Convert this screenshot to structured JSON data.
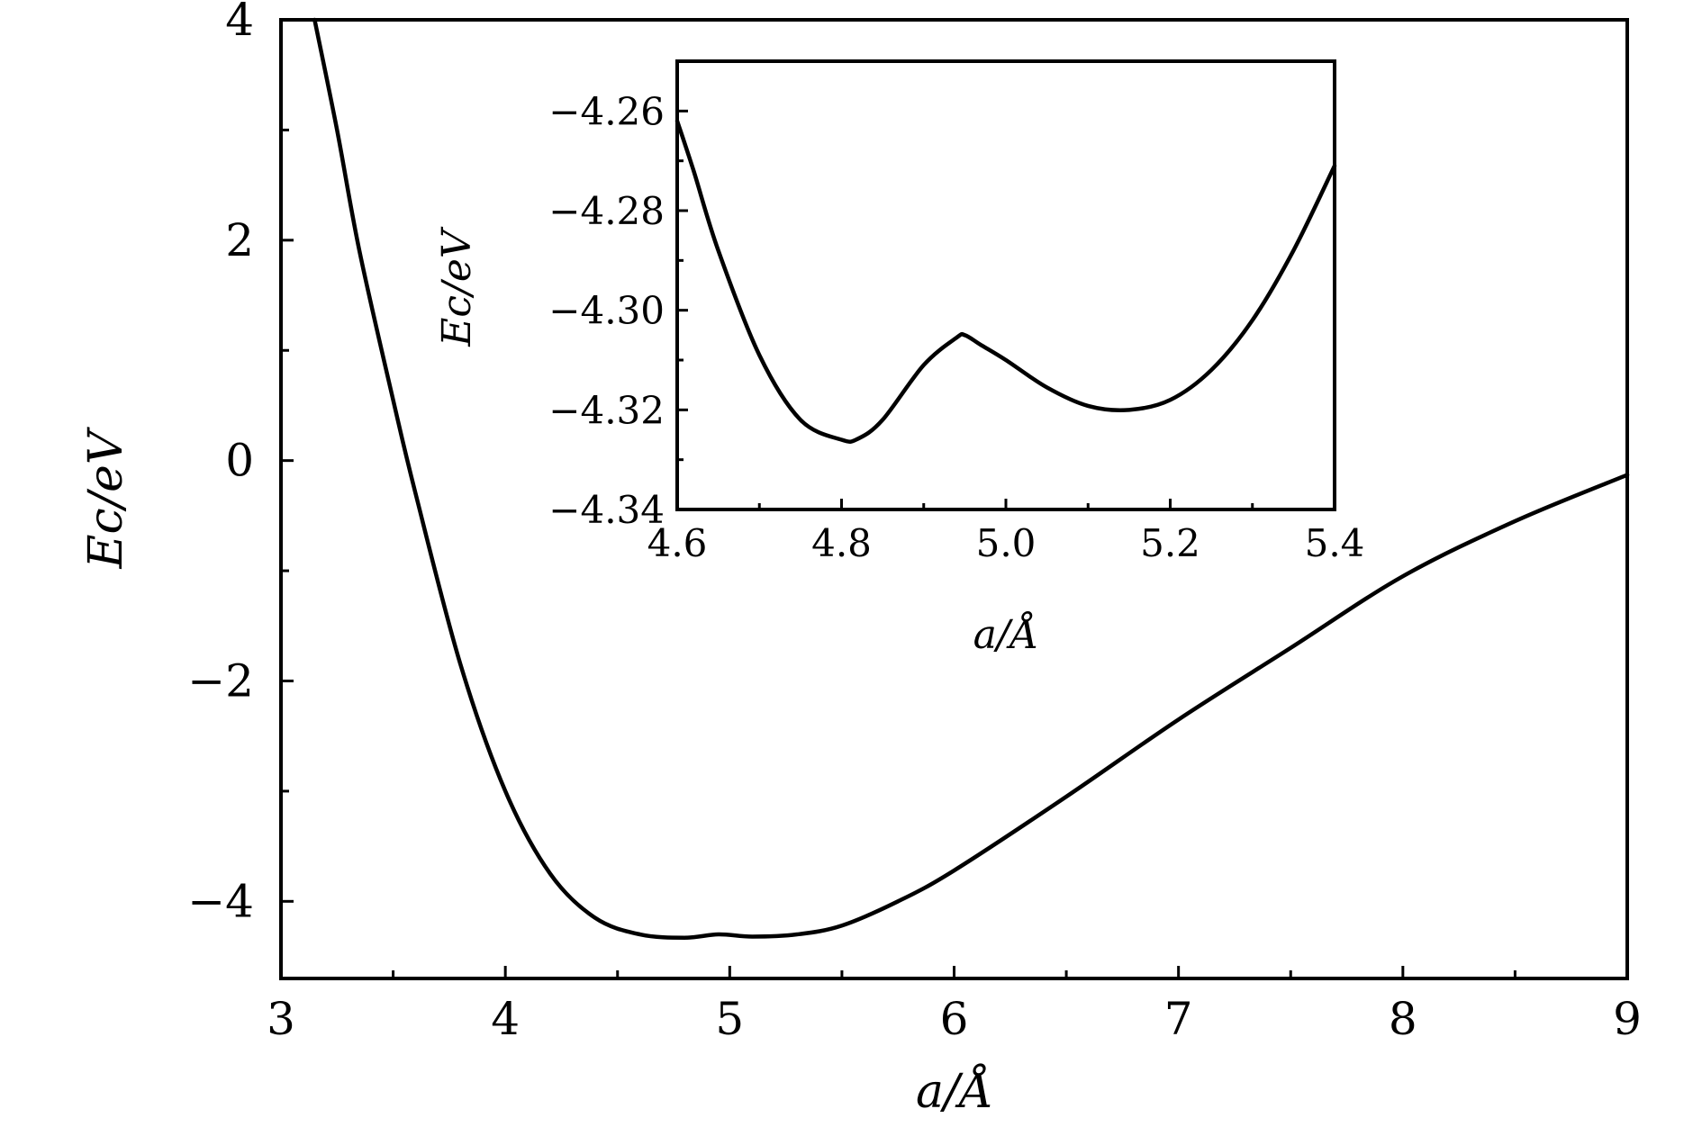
{
  "chart_data": [
    {
      "id": "main",
      "type": "line",
      "title": "",
      "xlabel": "a/Å",
      "ylabel": "Ec/eV",
      "xlim": [
        3,
        9
      ],
      "ylim": [
        -4.7,
        4
      ],
      "x_ticks": [
        3,
        4,
        5,
        6,
        7,
        8,
        9
      ],
      "x_tick_labels": [
        "3",
        "4",
        "5",
        "6",
        "7",
        "8",
        "9"
      ],
      "x_minor_ticks": [
        3.5,
        4.5,
        5.5,
        6.5,
        7.5,
        8.5
      ],
      "y_ticks": [
        -4,
        -2,
        0,
        2,
        4
      ],
      "y_tick_labels": [
        "−4",
        "−2",
        "0",
        "2",
        "4"
      ],
      "y_minor_ticks": [
        -3,
        -1,
        1,
        3
      ],
      "grid": false,
      "series": [
        {
          "color": "#000000",
          "x": [
            3.15,
            3.25,
            3.35,
            3.5,
            3.6,
            3.8,
            4.0,
            4.2,
            4.4,
            4.6,
            4.8,
            4.95,
            5.1,
            5.3,
            5.5,
            5.75,
            6.0,
            6.5,
            7.0,
            7.5,
            8.0,
            8.5,
            9.0
          ],
          "y": [
            4.0,
            3.0,
            1.9,
            0.55,
            -0.3,
            -1.85,
            -3.0,
            -3.75,
            -4.15,
            -4.3,
            -4.33,
            -4.3,
            -4.32,
            -4.3,
            -4.22,
            -4.0,
            -3.72,
            -3.05,
            -2.35,
            -1.7,
            -1.05,
            -0.55,
            -0.13
          ]
        }
      ]
    },
    {
      "id": "inset",
      "type": "line",
      "title": "",
      "xlabel": "a/Å",
      "ylabel": "Ec/eV",
      "xlim": [
        4.6,
        5.4
      ],
      "ylim": [
        -4.34,
        -4.25
      ],
      "x_ticks": [
        4.6,
        4.8,
        5.0,
        5.2,
        5.4
      ],
      "x_tick_labels": [
        "4.6",
        "4.8",
        "5.0",
        "5.2",
        "5.4"
      ],
      "x_minor_ticks": [
        4.7,
        4.9,
        5.1,
        5.3
      ],
      "y_ticks": [
        -4.34,
        -4.32,
        -4.3,
        -4.28,
        -4.26
      ],
      "y_tick_labels": [
        "−4.34",
        "−4.32",
        "−4.30",
        "−4.28",
        "−4.26"
      ],
      "y_minor_ticks": [
        -4.33,
        -4.31,
        -4.29,
        -4.27,
        -4.25
      ],
      "grid": false,
      "series": [
        {
          "color": "#000000",
          "x": [
            4.6,
            4.62,
            4.65,
            4.7,
            4.75,
            4.8,
            4.82,
            4.85,
            4.9,
            4.94,
            4.95,
            4.97,
            5.0,
            5.05,
            5.1,
            5.15,
            5.2,
            5.25,
            5.3,
            5.35,
            5.4
          ],
          "y": [
            -4.262,
            -4.272,
            -4.288,
            -4.309,
            -4.322,
            -4.326,
            -4.3258,
            -4.322,
            -4.311,
            -4.3055,
            -4.305,
            -4.307,
            -4.31,
            -4.3155,
            -4.3192,
            -4.32,
            -4.318,
            -4.312,
            -4.302,
            -4.288,
            -4.271
          ]
        }
      ]
    }
  ]
}
